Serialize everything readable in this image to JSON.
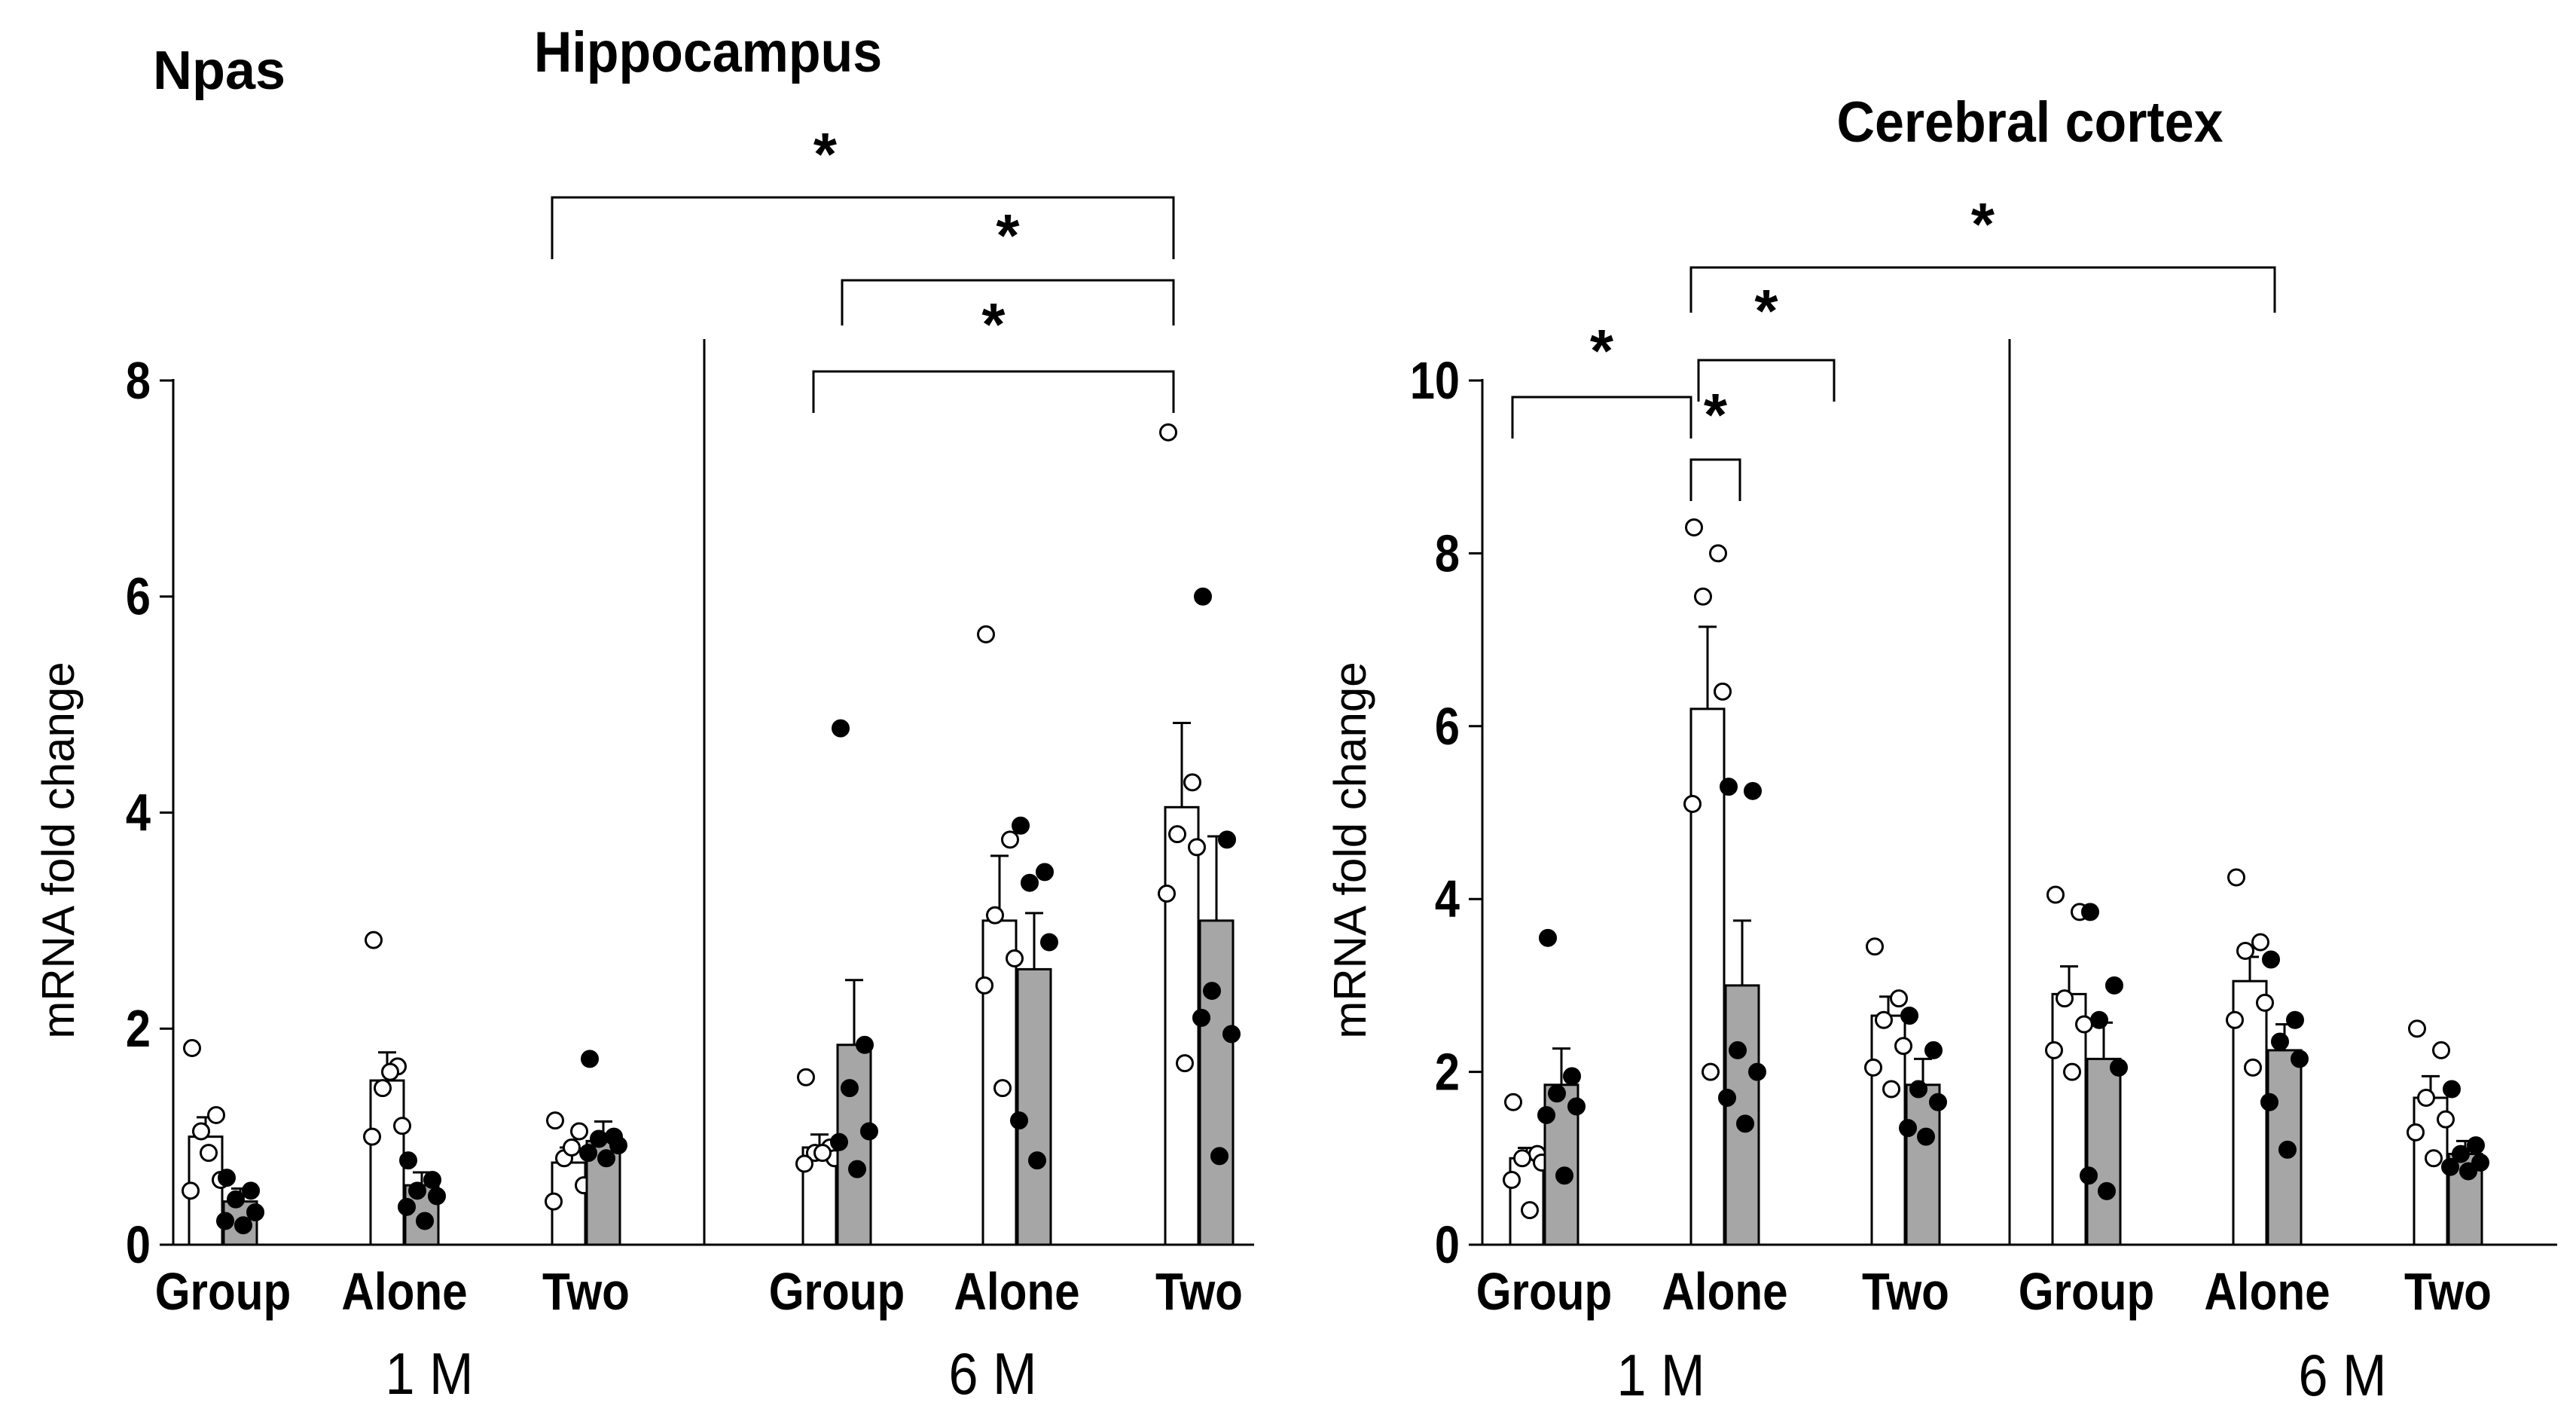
{
  "figure": {
    "gene_label": "Npas",
    "colors": {
      "white_bar": "#ffffff",
      "grey_bar": "#a6a6a6",
      "axis": "#000000",
      "open_dot": "#ffffff",
      "filled_dot": "#000000"
    }
  },
  "chart_data": [
    {
      "type": "bar",
      "title": "Hippocampus",
      "xlabel": "",
      "ylabel": "mRNA fold change",
      "ylim": [
        0,
        8
      ],
      "yticks": [
        "0",
        "2",
        "4",
        "6",
        "8"
      ],
      "categories": [
        "Group",
        "Alone",
        "Two",
        "Group",
        "Alone",
        "Two"
      ],
      "age_groups": [
        {
          "label": "1 M",
          "span": [
            0,
            2
          ]
        },
        {
          "label": "6 M",
          "span": [
            3,
            5
          ]
        }
      ],
      "series": [
        {
          "name": "white",
          "values": [
            1.0,
            1.52,
            0.76,
            0.9,
            3.0,
            4.05
          ],
          "errors": [
            0.18,
            0.26,
            0.14,
            0.12,
            0.6,
            0.78
          ],
          "points": [
            [
              1.82,
              1.2,
              1.05,
              0.6,
              0.5,
              0.85
            ],
            [
              2.82,
              1.65,
              1.45,
              1.1,
              1.0,
              1.6
            ],
            [
              1.15,
              1.05,
              0.8,
              0.55,
              0.4,
              0.9
            ],
            [
              1.55,
              0.9,
              0.85,
              0.8,
              0.75,
              0.85
            ],
            [
              5.65,
              3.75,
              3.05,
              2.65,
              2.4,
              1.45
            ],
            [
              7.52,
              4.28,
              3.8,
              3.68,
              3.25,
              1.68
            ]
          ]
        },
        {
          "name": "grey",
          "values": [
            0.4,
            0.55,
            0.96,
            1.85,
            2.55,
            3.0
          ],
          "errors": [
            0.12,
            0.12,
            0.18,
            0.6,
            0.52,
            0.78
          ],
          "points": [
            [
              0.62,
              0.5,
              0.42,
              0.3,
              0.22,
              0.18
            ],
            [
              0.78,
              0.6,
              0.5,
              0.45,
              0.35,
              0.22
            ],
            [
              1.72,
              1.0,
              0.98,
              0.92,
              0.85,
              0.8
            ],
            [
              4.78,
              1.85,
              1.45,
              1.05,
              0.95,
              0.7
            ],
            [
              3.88,
              3.45,
              3.35,
              2.8,
              1.15,
              0.78
            ],
            [
              6.0,
              3.75,
              2.35,
              1.95,
              2.1,
              0.82
            ]
          ]
        }
      ],
      "significance": [
        {
          "from_category": 2,
          "to_category": 5,
          "label": "*"
        },
        {
          "from_category": 3,
          "to_category": 5,
          "label": "*"
        },
        {
          "from_category": 3,
          "to_category": 5,
          "label": "*"
        }
      ]
    },
    {
      "type": "bar",
      "title": "Cerebral cortex",
      "xlabel": "",
      "ylabel": "mRNA fold change",
      "ylim": [
        0,
        10
      ],
      "yticks": [
        "0",
        "2",
        "4",
        "6",
        "8",
        "10"
      ],
      "categories": [
        "Group",
        "Alone",
        "Two",
        "Group",
        "Alone",
        "Two"
      ],
      "age_groups": [
        {
          "label": "1 M",
          "span": [
            0,
            2
          ]
        },
        {
          "label": "6 M",
          "span": [
            3,
            5
          ]
        }
      ],
      "series": [
        {
          "name": "white",
          "values": [
            1.0,
            6.2,
            2.65,
            2.9,
            3.05,
            1.7
          ],
          "errors": [
            0.12,
            0.95,
            0.22,
            0.32,
            0.28,
            0.25
          ],
          "points": [
            [
              1.65,
              1.05,
              1.0,
              0.95,
              0.75,
              0.4
            ],
            [
              8.3,
              8.0,
              7.5,
              6.4,
              5.1,
              2.0
            ],
            [
              3.45,
              2.85,
              2.6,
              2.3,
              2.05,
              1.8
            ],
            [
              4.05,
              3.85,
              2.85,
              2.55,
              2.25,
              2.0
            ],
            [
              4.25,
              3.5,
              3.4,
              2.8,
              2.6,
              2.05
            ],
            [
              2.5,
              2.25,
              1.7,
              1.45,
              1.3,
              1.0
            ]
          ]
        },
        {
          "name": "grey",
          "values": [
            1.85,
            3.0,
            1.85,
            2.15,
            2.25,
            1.05
          ],
          "errors": [
            0.42,
            0.75,
            0.3,
            0.42,
            0.3,
            0.15
          ],
          "points": [
            [
              3.55,
              1.95,
              1.75,
              1.6,
              1.5,
              0.8
            ],
            [
              5.3,
              5.25,
              2.25,
              2.0,
              1.7,
              1.4
            ],
            [
              2.65,
              2.25,
              1.8,
              1.65,
              1.35,
              1.25
            ],
            [
              3.85,
              3.0,
              2.6,
              2.05,
              0.8,
              0.62
            ],
            [
              3.3,
              2.6,
              2.35,
              2.15,
              1.65,
              1.1
            ],
            [
              1.8,
              1.15,
              1.05,
              0.95,
              0.9,
              0.85
            ]
          ]
        }
      ],
      "significance": [
        {
          "from_category": 0,
          "to_category": 1,
          "label": "*"
        },
        {
          "from_category": 1,
          "to_category": 1,
          "label": "*"
        },
        {
          "from_category": 1,
          "to_category": 2,
          "label": "*"
        },
        {
          "from_category": 1,
          "to_category": 4,
          "label": "*"
        }
      ]
    }
  ]
}
